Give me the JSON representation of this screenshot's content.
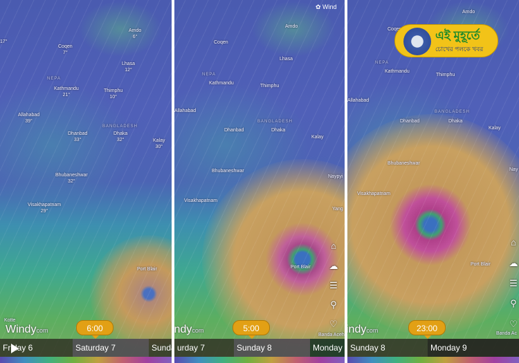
{
  "app": {
    "logo": "Windy",
    "logo_suffix": "com",
    "layer": "Wind"
  },
  "branding": {
    "title": "এই মুহূর্তে",
    "tagline": "চোখের পলকে খবর"
  },
  "panels": [
    {
      "time": "6:00",
      "days": [
        "Friday 6",
        "Saturday 7",
        "Sunda"
      ],
      "selected_day": "Saturday 7",
      "labels": {
        "randa": "17°",
        "amdo": "Amdo",
        "amdo_t": "6°",
        "coqen": "Coqen",
        "coqen_t": "7°",
        "lhasa": "Lhasa",
        "lhasa_t": "12°",
        "nepal": "NEPA",
        "kathmandu": "Kathmandu",
        "kathmandu_t": "21°",
        "thimphu": "Thimphu",
        "thimphu_t": "10°",
        "allahabad": "Allahabad",
        "allahabad_t": "39°",
        "bangladesh": "BANGLADESH",
        "dhanbad": "Dhanbad",
        "dhanbad_t": "33°",
        "dhaka": "Dhaka",
        "dhaka_t": "32°",
        "kalay": "Kalay",
        "kalay_t": "30°",
        "bhubaneshwar": "Bhubaneshwar",
        "bhubaneshwar_t": "32°",
        "visakhapatnam": "Visakhapatnam",
        "visakhapatnam_t": "29°",
        "portblair": "Port Blair",
        "kotte": "Kotte"
      }
    },
    {
      "time": "5:00",
      "days": [
        "urday 7",
        "Sunday 8",
        "Monday"
      ],
      "selected_day": "Sunday 8",
      "labels": {
        "amdo": "Amdo",
        "coqen": "Coqen",
        "lhasa": "Lhasa",
        "nepal": "NEPA",
        "kathmandu": "Kathmandu",
        "thimphu": "Thimphu",
        "allahabad": "Allahabad",
        "bangladesh": "BANGLADESH",
        "dhanbad": "Dhanbad",
        "dhaka": "Dhaka",
        "kalay": "Kalay",
        "bhubaneshwar": "Bhubaneshwar",
        "naypyidaw": "Naypyi",
        "visakhapatnam": "Visakhapatnam",
        "yangon": "Yang",
        "portblair": "Port Blair",
        "bandaaceh": "Banda Aceh"
      }
    },
    {
      "time": "23:00",
      "days": [
        "Sunday 8",
        "Monday 9"
      ],
      "selected_day": "Monday 9",
      "labels": {
        "amdo": "Amdo",
        "coqen": "Coqen",
        "nepal": "NEPA",
        "kathmandu": "Kathmandu",
        "thimphu": "Thimphu",
        "allahabad": "Allahabad",
        "bangladesh": "BANGLADESH",
        "dhanbad": "Dhanbad",
        "dhaka": "Dhaka",
        "kalay": "Kalay",
        "bhubaneshwar": "Bhubaneshwar",
        "naypyidaw": "Nay",
        "visakhapatnam": "Visakhapatnam",
        "portblair": "Port Blair",
        "bandaaceh": "Banda Ac"
      }
    }
  ],
  "side_icons": [
    "home-icon",
    "weather-icon",
    "menu-icon",
    "search-icon",
    "favorite-icon"
  ],
  "colors": {
    "bubble": "#e2a015",
    "calm": "#4a5bb0",
    "storm_core": "#a0408a",
    "storm_outer": "#c09858"
  }
}
